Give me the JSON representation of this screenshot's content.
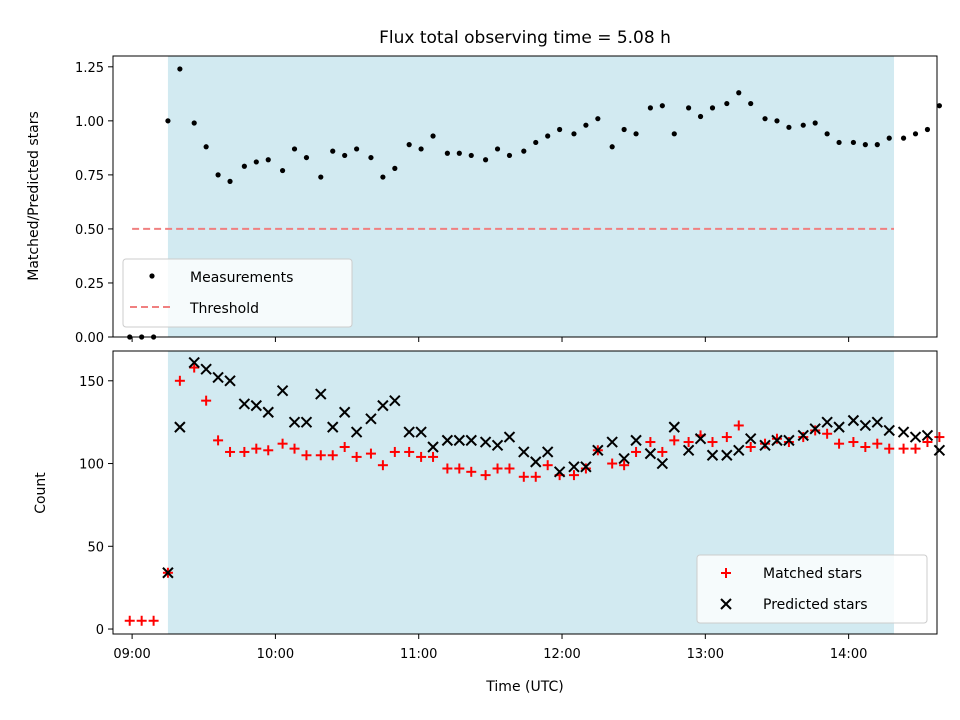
{
  "figure_title": "Flux total observing time = 5.08 h",
  "colors": {
    "span": "#add8e6",
    "measurement": "#000000",
    "threshold": "#f08080",
    "matched": "#ff0000",
    "predicted": "#000000"
  },
  "chart_data": [
    {
      "type": "scatter",
      "ylabel": "Matched/Predicted stars",
      "xlabel": "",
      "xlim": [
        "08:52",
        "14:37"
      ],
      "ylim": [
        0,
        1.3
      ],
      "yticks": [
        "0.00",
        "0.25",
        "0.50",
        "0.75",
        "1.00",
        "1.25"
      ],
      "ytick_values": [
        0,
        0.25,
        0.5,
        0.75,
        1.0,
        1.25
      ],
      "xtick_values": [
        "09:00",
        "10:00",
        "11:00",
        "12:00",
        "13:00",
        "14:00"
      ],
      "shaded_span": [
        "09:15",
        "14:19"
      ],
      "threshold": {
        "name": "Threshold",
        "y": 0.5,
        "x_range": [
          "09:00",
          "14:19"
        ],
        "style": "dashed"
      },
      "legend_position": "lower-left",
      "series": [
        {
          "name": "Measurements",
          "marker": "dot",
          "points": [
            [
              "08:59",
              0.0
            ],
            [
              "09:04",
              0.0
            ],
            [
              "09:09",
              0.0
            ],
            [
              "09:15",
              1.0
            ],
            [
              "09:20",
              1.24
            ],
            [
              "09:26",
              0.99
            ],
            [
              "09:31",
              0.88
            ],
            [
              "09:36",
              0.75
            ],
            [
              "09:41",
              0.72
            ],
            [
              "09:47",
              0.79
            ],
            [
              "09:52",
              0.81
            ],
            [
              "09:57",
              0.82
            ],
            [
              "10:03",
              0.77
            ],
            [
              "10:08",
              0.87
            ],
            [
              "10:13",
              0.83
            ],
            [
              "10:19",
              0.74
            ],
            [
              "10:24",
              0.86
            ],
            [
              "10:29",
              0.84
            ],
            [
              "10:34",
              0.87
            ],
            [
              "10:40",
              0.83
            ],
            [
              "10:45",
              0.74
            ],
            [
              "10:50",
              0.78
            ],
            [
              "10:56",
              0.89
            ],
            [
              "11:01",
              0.87
            ],
            [
              "11:06",
              0.93
            ],
            [
              "11:12",
              0.85
            ],
            [
              "11:17",
              0.85
            ],
            [
              "11:22",
              0.84
            ],
            [
              "11:28",
              0.82
            ],
            [
              "11:33",
              0.87
            ],
            [
              "11:38",
              0.84
            ],
            [
              "11:44",
              0.86
            ],
            [
              "11:49",
              0.9
            ],
            [
              "11:54",
              0.93
            ],
            [
              "11:59",
              0.96
            ],
            [
              "12:05",
              0.94
            ],
            [
              "12:10",
              0.98
            ],
            [
              "12:15",
              1.01
            ],
            [
              "12:21",
              0.88
            ],
            [
              "12:26",
              0.96
            ],
            [
              "12:31",
              0.94
            ],
            [
              "12:37",
              1.06
            ],
            [
              "12:42",
              1.07
            ],
            [
              "12:47",
              0.94
            ],
            [
              "12:53",
              1.06
            ],
            [
              "12:58",
              1.02
            ],
            [
              "13:03",
              1.06
            ],
            [
              "13:09",
              1.08
            ],
            [
              "13:14",
              1.13
            ],
            [
              "13:19",
              1.08
            ],
            [
              "13:25",
              1.01
            ],
            [
              "13:30",
              1.0
            ],
            [
              "13:35",
              0.97
            ],
            [
              "13:41",
              0.98
            ],
            [
              "13:46",
              0.99
            ],
            [
              "13:51",
              0.94
            ],
            [
              "13:56",
              0.9
            ],
            [
              "14:02",
              0.9
            ],
            [
              "14:07",
              0.89
            ],
            [
              "14:12",
              0.89
            ],
            [
              "14:17",
              0.92
            ],
            [
              "14:23",
              0.92
            ],
            [
              "14:28",
              0.94
            ],
            [
              "14:33",
              0.96
            ],
            [
              "14:38",
              1.07
            ]
          ]
        }
      ]
    },
    {
      "type": "scatter",
      "ylabel": "Count",
      "xlabel": "Time (UTC)",
      "xlim": [
        "08:52",
        "14:37"
      ],
      "ylim": [
        -3,
        168
      ],
      "yticks": [
        "0",
        "50",
        "100",
        "150"
      ],
      "ytick_values": [
        0,
        50,
        100,
        150
      ],
      "xticks": [
        "09:00",
        "10:00",
        "11:00",
        "12:00",
        "13:00",
        "14:00"
      ],
      "xtick_values": [
        "09:00",
        "10:00",
        "11:00",
        "12:00",
        "13:00",
        "14:00"
      ],
      "shaded_span": [
        "09:15",
        "14:19"
      ],
      "legend_position": "lower-right",
      "series": [
        {
          "name": "Matched stars",
          "marker": "plus",
          "points": [
            [
              "08:59",
              5
            ],
            [
              "09:04",
              5
            ],
            [
              "09:09",
              5
            ],
            [
              "09:15",
              34
            ],
            [
              "09:20",
              150
            ],
            [
              "09:26",
              158
            ],
            [
              "09:31",
              138
            ],
            [
              "09:36",
              114
            ],
            [
              "09:41",
              107
            ],
            [
              "09:47",
              107
            ],
            [
              "09:52",
              109
            ],
            [
              "09:57",
              108
            ],
            [
              "10:03",
              112
            ],
            [
              "10:08",
              109
            ],
            [
              "10:13",
              105
            ],
            [
              "10:19",
              105
            ],
            [
              "10:24",
              105
            ],
            [
              "10:29",
              110
            ],
            [
              "10:34",
              104
            ],
            [
              "10:40",
              106
            ],
            [
              "10:45",
              99
            ],
            [
              "10:50",
              107
            ],
            [
              "10:56",
              107
            ],
            [
              "11:01",
              104
            ],
            [
              "11:06",
              104
            ],
            [
              "11:12",
              97
            ],
            [
              "11:17",
              97
            ],
            [
              "11:22",
              95
            ],
            [
              "11:28",
              93
            ],
            [
              "11:33",
              97
            ],
            [
              "11:38",
              97
            ],
            [
              "11:44",
              92
            ],
            [
              "11:49",
              92
            ],
            [
              "11:54",
              99
            ],
            [
              "11:59",
              93
            ],
            [
              "12:05",
              93
            ],
            [
              "12:10",
              97
            ],
            [
              "12:15",
              108
            ],
            [
              "12:21",
              100
            ],
            [
              "12:26",
              99
            ],
            [
              "12:31",
              107
            ],
            [
              "12:37",
              113
            ],
            [
              "12:42",
              107
            ],
            [
              "12:47",
              114
            ],
            [
              "12:53",
              113
            ],
            [
              "12:58",
              117
            ],
            [
              "13:03",
              113
            ],
            [
              "13:09",
              116
            ],
            [
              "13:14",
              123
            ],
            [
              "13:19",
              110
            ],
            [
              "13:25",
              112
            ],
            [
              "13:30",
              115
            ],
            [
              "13:35",
              113
            ],
            [
              "13:41",
              116
            ],
            [
              "13:46",
              120
            ],
            [
              "13:51",
              118
            ],
            [
              "13:56",
              112
            ],
            [
              "14:02",
              113
            ],
            [
              "14:07",
              110
            ],
            [
              "14:12",
              112
            ],
            [
              "14:17",
              109
            ],
            [
              "14:23",
              109
            ],
            [
              "14:28",
              109
            ],
            [
              "14:33",
              113
            ],
            [
              "14:38",
              116
            ]
          ]
        },
        {
          "name": "Predicted stars",
          "marker": "x",
          "points": [
            [
              "09:15",
              34
            ],
            [
              "09:20",
              122
            ],
            [
              "09:26",
              161
            ],
            [
              "09:31",
              157
            ],
            [
              "09:36",
              152
            ],
            [
              "09:41",
              150
            ],
            [
              "09:47",
              136
            ],
            [
              "09:52",
              135
            ],
            [
              "09:57",
              131
            ],
            [
              "10:03",
              144
            ],
            [
              "10:08",
              125
            ],
            [
              "10:13",
              125
            ],
            [
              "10:19",
              142
            ],
            [
              "10:24",
              122
            ],
            [
              "10:29",
              131
            ],
            [
              "10:34",
              119
            ],
            [
              "10:40",
              127
            ],
            [
              "10:45",
              135
            ],
            [
              "10:50",
              138
            ],
            [
              "10:56",
              119
            ],
            [
              "11:01",
              119
            ],
            [
              "11:06",
              110
            ],
            [
              "11:12",
              114
            ],
            [
              "11:17",
              114
            ],
            [
              "11:22",
              114
            ],
            [
              "11:28",
              113
            ],
            [
              "11:33",
              111
            ],
            [
              "11:38",
              116
            ],
            [
              "11:44",
              107
            ],
            [
              "11:49",
              101
            ],
            [
              "11:54",
              107
            ],
            [
              "11:59",
              95
            ],
            [
              "12:05",
              98
            ],
            [
              "12:10",
              98
            ],
            [
              "12:15",
              108
            ],
            [
              "12:21",
              113
            ],
            [
              "12:26",
              103
            ],
            [
              "12:31",
              114
            ],
            [
              "12:37",
              106
            ],
            [
              "12:42",
              100
            ],
            [
              "12:47",
              122
            ],
            [
              "12:53",
              108
            ],
            [
              "12:58",
              115
            ],
            [
              "13:03",
              105
            ],
            [
              "13:09",
              105
            ],
            [
              "13:14",
              108
            ],
            [
              "13:19",
              115
            ],
            [
              "13:25",
              111
            ],
            [
              "13:30",
              114
            ],
            [
              "13:35",
              114
            ],
            [
              "13:41",
              117
            ],
            [
              "13:46",
              121
            ],
            [
              "13:51",
              125
            ],
            [
              "13:56",
              122
            ],
            [
              "14:02",
              126
            ],
            [
              "14:07",
              123
            ],
            [
              "14:12",
              125
            ],
            [
              "14:17",
              120
            ],
            [
              "14:23",
              119
            ],
            [
              "14:28",
              116
            ],
            [
              "14:33",
              117
            ],
            [
              "14:38",
              108
            ]
          ]
        }
      ]
    }
  ]
}
